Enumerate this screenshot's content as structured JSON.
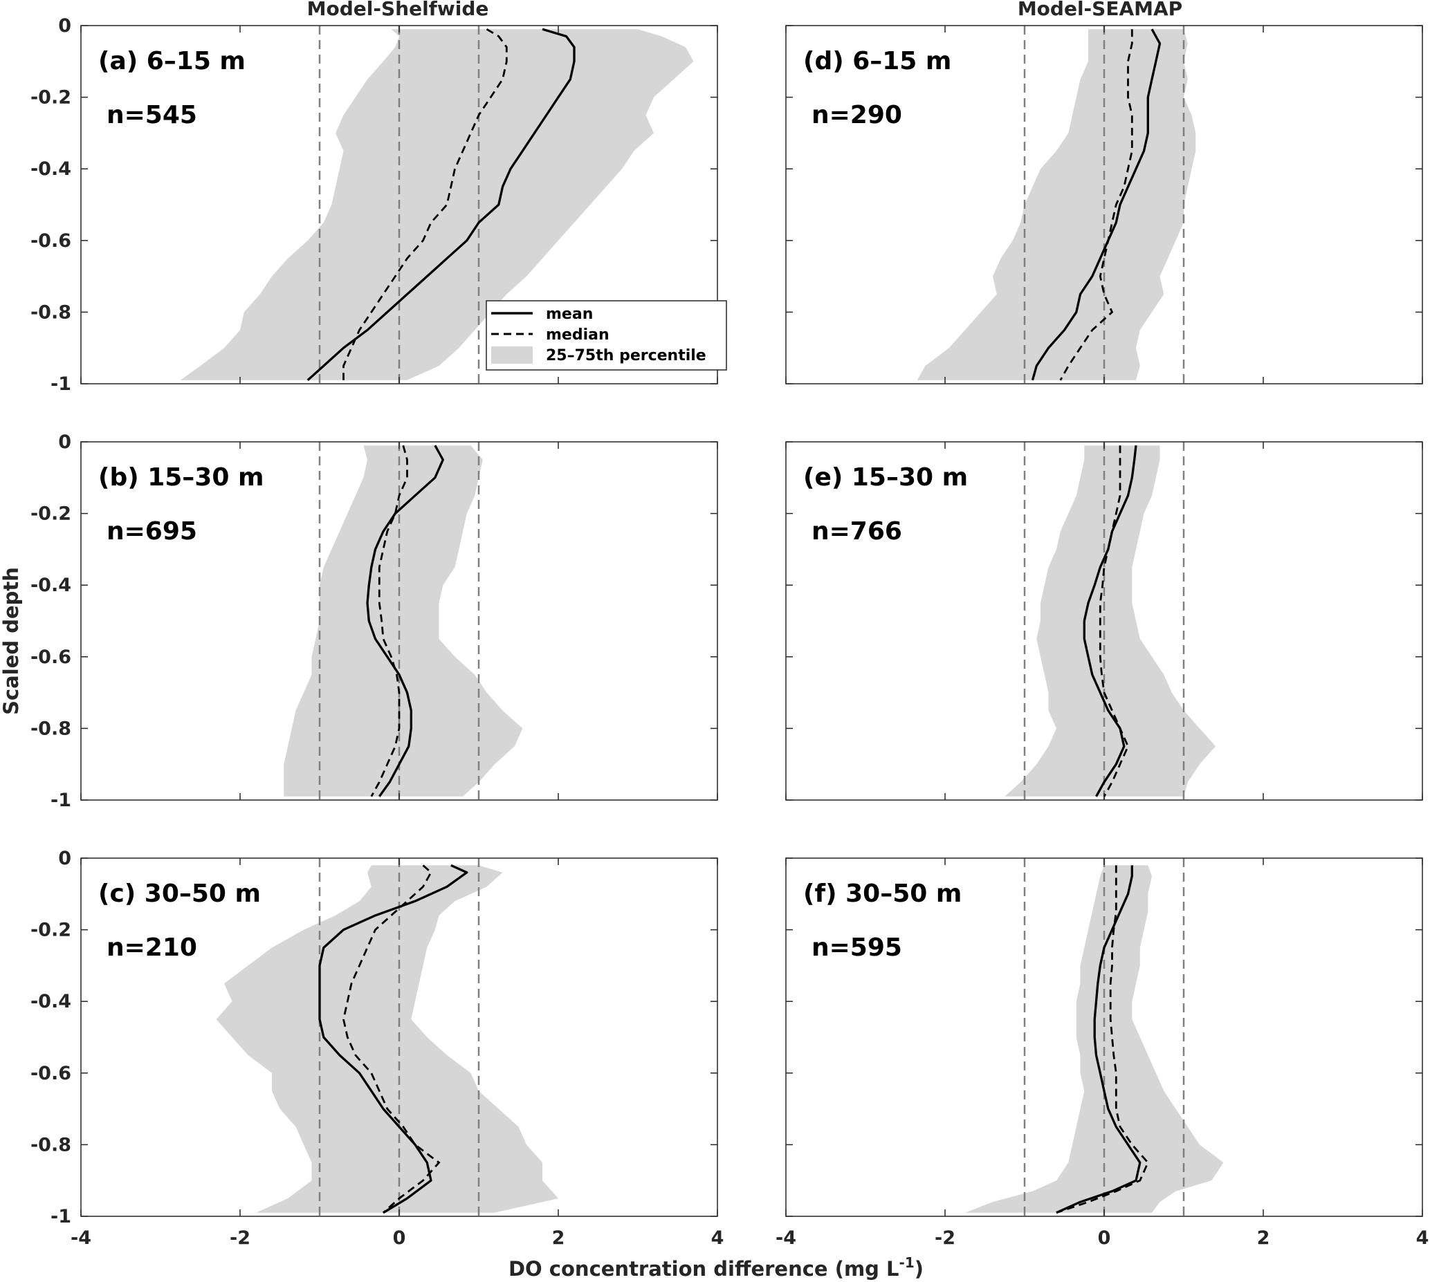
{
  "figure": {
    "column_titles": [
      "Model-Shelfwide",
      "Model-SEAMAP"
    ],
    "xlabel_main": "DO concentration difference (mg L",
    "xlabel_sup": "-1",
    "xlabel_end": ")",
    "ylabel": "Scaled depth"
  },
  "legend": {
    "mean": "mean",
    "median": "median",
    "band": "25–75th percentile"
  },
  "colors": {
    "band": "#d6d6d6",
    "mean": "#000000",
    "median": "#000000",
    "reference_lines": "#808080",
    "axes": "#262626"
  },
  "chart_data": [
    {
      "type": "line",
      "panel": "(a) 6–15 m",
      "n_label": "n=545",
      "xlim": [
        -4,
        4
      ],
      "ylim": [
        -1,
        0
      ],
      "xticks": [
        -4,
        -2,
        0,
        2,
        4
      ],
      "yticks": [
        0,
        -0.2,
        -0.4,
        -0.6,
        -0.8,
        -1
      ],
      "reference_x": [
        -1,
        0,
        1
      ],
      "depth": [
        -0.01,
        -0.03,
        -0.06,
        -0.1,
        -0.15,
        -0.2,
        -0.25,
        -0.3,
        -0.35,
        -0.4,
        -0.45,
        -0.5,
        -0.55,
        -0.6,
        -0.65,
        -0.7,
        -0.75,
        -0.8,
        -0.85,
        -0.9,
        -0.95,
        -0.99
      ],
      "mean": [
        1.8,
        2.1,
        2.2,
        2.2,
        2.15,
        2.0,
        1.85,
        1.7,
        1.55,
        1.4,
        1.3,
        1.25,
        1.0,
        0.85,
        0.6,
        0.35,
        0.1,
        -0.15,
        -0.4,
        -0.7,
        -0.95,
        -1.15
      ],
      "median": [
        1.1,
        1.25,
        1.35,
        1.35,
        1.3,
        1.15,
        1.0,
        0.9,
        0.8,
        0.7,
        0.65,
        0.6,
        0.4,
        0.3,
        0.1,
        -0.05,
        -0.2,
        -0.35,
        -0.5,
        -0.6,
        -0.7,
        -0.7
      ],
      "p25": [
        -0.1,
        0.0,
        -0.05,
        -0.2,
        -0.4,
        -0.55,
        -0.7,
        -0.8,
        -0.7,
        -0.75,
        -0.8,
        -0.85,
        -0.95,
        -1.15,
        -1.4,
        -1.6,
        -1.75,
        -1.95,
        -2.0,
        -2.2,
        -2.5,
        -2.75
      ],
      "p75": [
        3.0,
        3.3,
        3.6,
        3.7,
        3.45,
        3.2,
        3.1,
        3.2,
        2.95,
        2.8,
        2.6,
        2.4,
        2.2,
        2.0,
        1.8,
        1.6,
        1.35,
        1.15,
        0.95,
        0.75,
        0.5,
        0.1
      ]
    },
    {
      "type": "line",
      "panel": "(b) 15–30 m",
      "n_label": "n=695",
      "xlim": [
        -4,
        4
      ],
      "ylim": [
        -1,
        0
      ],
      "xticks": [
        -4,
        -2,
        0,
        2,
        4
      ],
      "yticks": [
        0,
        -0.2,
        -0.4,
        -0.6,
        -0.8,
        -1
      ],
      "reference_x": [
        -1,
        0,
        1
      ],
      "depth": [
        -0.01,
        -0.05,
        -0.1,
        -0.15,
        -0.2,
        -0.25,
        -0.3,
        -0.35,
        -0.4,
        -0.45,
        -0.5,
        -0.55,
        -0.6,
        -0.65,
        -0.7,
        -0.75,
        -0.8,
        -0.85,
        -0.9,
        -0.95,
        -0.99
      ],
      "mean": [
        0.45,
        0.55,
        0.45,
        0.2,
        -0.05,
        -0.2,
        -0.3,
        -0.35,
        -0.38,
        -0.4,
        -0.38,
        -0.3,
        -0.15,
        0.0,
        0.1,
        0.15,
        0.15,
        0.12,
        0.0,
        -0.12,
        -0.25
      ],
      "median": [
        0.05,
        0.1,
        0.1,
        0.0,
        -0.05,
        -0.15,
        -0.2,
        -0.25,
        -0.25,
        -0.25,
        -0.22,
        -0.2,
        -0.1,
        -0.03,
        0.0,
        0.0,
        0.0,
        -0.05,
        -0.15,
        -0.25,
        -0.35
      ],
      "p25": [
        -0.45,
        -0.4,
        -0.45,
        -0.55,
        -0.65,
        -0.75,
        -0.85,
        -0.95,
        -1.0,
        -1.0,
        -1.0,
        -1.05,
        -1.1,
        -1.1,
        -1.2,
        -1.3,
        -1.35,
        -1.4,
        -1.45,
        -1.45,
        -1.45
      ],
      "p75": [
        0.9,
        1.05,
        1.0,
        0.95,
        0.85,
        0.8,
        0.75,
        0.7,
        0.55,
        0.5,
        0.5,
        0.5,
        0.7,
        0.95,
        1.1,
        1.3,
        1.55,
        1.45,
        1.2,
        1.0,
        0.8
      ]
    },
    {
      "type": "line",
      "panel": "(c) 30–50 m",
      "n_label": "n=210",
      "xlim": [
        -4,
        4
      ],
      "ylim": [
        -1,
        0
      ],
      "xticks": [
        -4,
        -2,
        0,
        2,
        4
      ],
      "yticks": [
        0,
        -0.2,
        -0.4,
        -0.6,
        -0.8,
        -1
      ],
      "reference_x": [
        -1,
        0,
        1
      ],
      "depth": [
        -0.02,
        -0.04,
        -0.08,
        -0.12,
        -0.16,
        -0.2,
        -0.25,
        -0.3,
        -0.35,
        -0.4,
        -0.45,
        -0.5,
        -0.55,
        -0.6,
        -0.65,
        -0.7,
        -0.75,
        -0.8,
        -0.85,
        -0.9,
        -0.95,
        -0.99
      ],
      "mean": [
        0.65,
        0.85,
        0.6,
        0.2,
        -0.3,
        -0.7,
        -0.95,
        -1.0,
        -1.0,
        -1.0,
        -1.0,
        -0.95,
        -0.75,
        -0.5,
        -0.35,
        -0.2,
        0.0,
        0.2,
        0.35,
        0.4,
        0.1,
        -0.2
      ],
      "median": [
        0.3,
        0.4,
        0.3,
        0.1,
        -0.1,
        -0.3,
        -0.4,
        -0.5,
        -0.6,
        -0.65,
        -0.7,
        -0.65,
        -0.55,
        -0.35,
        -0.25,
        -0.15,
        0.05,
        0.2,
        0.5,
        0.3,
        0.0,
        -0.2
      ],
      "p25": [
        -0.35,
        -0.4,
        -0.35,
        -0.5,
        -0.8,
        -1.2,
        -1.6,
        -1.9,
        -2.2,
        -2.1,
        -2.3,
        -2.1,
        -1.9,
        -1.6,
        -1.6,
        -1.5,
        -1.3,
        -1.2,
        -1.1,
        -1.1,
        -1.4,
        -1.8
      ],
      "p75": [
        1.0,
        1.3,
        1.1,
        0.7,
        0.5,
        0.45,
        0.35,
        0.3,
        0.25,
        0.2,
        0.15,
        0.35,
        0.6,
        0.9,
        1.0,
        1.25,
        1.5,
        1.6,
        1.8,
        1.8,
        2.0,
        1.2
      ]
    },
    {
      "type": "line",
      "panel": "(d) 6–15 m",
      "n_label": "n=290",
      "xlim": [
        -4,
        4
      ],
      "ylim": [
        -1,
        0
      ],
      "xticks": [
        -4,
        -2,
        0,
        2,
        4
      ],
      "yticks": [
        0,
        -0.2,
        -0.4,
        -0.6,
        -0.8,
        -1
      ],
      "reference_x": [
        -1,
        0,
        1
      ],
      "depth": [
        -0.01,
        -0.05,
        -0.1,
        -0.15,
        -0.2,
        -0.25,
        -0.3,
        -0.35,
        -0.4,
        -0.45,
        -0.5,
        -0.55,
        -0.6,
        -0.65,
        -0.7,
        -0.75,
        -0.8,
        -0.85,
        -0.9,
        -0.95,
        -0.99
      ],
      "mean": [
        0.6,
        0.7,
        0.65,
        0.6,
        0.55,
        0.55,
        0.55,
        0.5,
        0.4,
        0.3,
        0.2,
        0.15,
        0.05,
        -0.05,
        -0.15,
        -0.3,
        -0.35,
        -0.5,
        -0.7,
        -0.85,
        -0.9
      ],
      "median": [
        0.35,
        0.35,
        0.3,
        0.3,
        0.3,
        0.35,
        0.35,
        0.35,
        0.3,
        0.25,
        0.15,
        0.1,
        0.05,
        0.0,
        -0.05,
        0.0,
        0.1,
        -0.15,
        -0.3,
        -0.45,
        -0.55
      ],
      "p25": [
        -0.2,
        -0.2,
        -0.2,
        -0.3,
        -0.35,
        -0.4,
        -0.45,
        -0.6,
        -0.8,
        -0.9,
        -1.0,
        -1.05,
        -1.15,
        -1.3,
        -1.4,
        -1.35,
        -1.55,
        -1.75,
        -1.95,
        -2.25,
        -2.35
      ],
      "p75": [
        1.0,
        1.05,
        1.0,
        1.05,
        1.0,
        1.1,
        1.15,
        1.15,
        1.1,
        1.05,
        1.0,
        1.0,
        0.9,
        0.8,
        0.7,
        0.75,
        0.6,
        0.45,
        0.4,
        0.45,
        0.4
      ]
    },
    {
      "type": "line",
      "panel": "(e) 15–30 m",
      "n_label": "n=766",
      "xlim": [
        -4,
        4
      ],
      "ylim": [
        -1,
        0
      ],
      "xticks": [
        -4,
        -2,
        0,
        2,
        4
      ],
      "yticks": [
        0,
        -0.2,
        -0.4,
        -0.6,
        -0.8,
        -1
      ],
      "reference_x": [
        -1,
        0,
        1
      ],
      "depth": [
        -0.01,
        -0.05,
        -0.1,
        -0.15,
        -0.2,
        -0.25,
        -0.3,
        -0.35,
        -0.4,
        -0.45,
        -0.5,
        -0.55,
        -0.6,
        -0.65,
        -0.7,
        -0.75,
        -0.8,
        -0.85,
        -0.9,
        -0.95,
        -0.99
      ],
      "mean": [
        0.4,
        0.38,
        0.35,
        0.3,
        0.2,
        0.1,
        0.05,
        -0.05,
        -0.12,
        -0.2,
        -0.25,
        -0.25,
        -0.2,
        -0.15,
        -0.05,
        0.05,
        0.2,
        0.25,
        0.15,
        0.0,
        -0.1
      ],
      "median": [
        0.2,
        0.2,
        0.2,
        0.2,
        0.15,
        0.1,
        0.05,
        0.0,
        -0.02,
        -0.05,
        -0.05,
        -0.05,
        -0.05,
        -0.03,
        0.0,
        0.1,
        0.2,
        0.3,
        0.2,
        0.1,
        0.0
      ],
      "p25": [
        -0.25,
        -0.25,
        -0.3,
        -0.35,
        -0.45,
        -0.55,
        -0.6,
        -0.7,
        -0.75,
        -0.8,
        -0.8,
        -0.85,
        -0.8,
        -0.75,
        -0.7,
        -0.7,
        -0.6,
        -0.7,
        -0.85,
        -1.05,
        -1.25
      ],
      "p75": [
        0.7,
        0.7,
        0.65,
        0.6,
        0.5,
        0.45,
        0.4,
        0.35,
        0.35,
        0.35,
        0.4,
        0.45,
        0.6,
        0.75,
        0.85,
        1.0,
        1.2,
        1.4,
        1.2,
        1.05,
        1.0
      ]
    },
    {
      "type": "line",
      "panel": "(f) 30–50 m",
      "n_label": "n=595",
      "xlim": [
        -4,
        4
      ],
      "ylim": [
        -1,
        0
      ],
      "xticks": [
        -4,
        -2,
        0,
        2,
        4
      ],
      "yticks": [
        0,
        -0.2,
        -0.4,
        -0.6,
        -0.8,
        -1
      ],
      "reference_x": [
        -1,
        0,
        1
      ],
      "depth": [
        -0.02,
        -0.05,
        -0.1,
        -0.15,
        -0.2,
        -0.25,
        -0.3,
        -0.35,
        -0.4,
        -0.45,
        -0.5,
        -0.55,
        -0.6,
        -0.65,
        -0.7,
        -0.75,
        -0.8,
        -0.85,
        -0.9,
        -0.93,
        -0.96,
        -0.99
      ],
      "mean": [
        0.35,
        0.35,
        0.3,
        0.2,
        0.1,
        0.0,
        -0.05,
        -0.08,
        -0.1,
        -0.12,
        -0.12,
        -0.1,
        -0.05,
        0.0,
        0.05,
        0.15,
        0.3,
        0.45,
        0.4,
        0.1,
        -0.3,
        -0.6
      ],
      "median": [
        0.15,
        0.15,
        0.15,
        0.15,
        0.12,
        0.1,
        0.1,
        0.08,
        0.08,
        0.08,
        0.1,
        0.12,
        0.15,
        0.15,
        0.15,
        0.2,
        0.35,
        0.55,
        0.45,
        0.15,
        -0.2,
        -0.6
      ],
      "p25": [
        0.0,
        -0.05,
        -0.1,
        -0.15,
        -0.2,
        -0.25,
        -0.3,
        -0.3,
        -0.35,
        -0.35,
        -0.35,
        -0.3,
        -0.3,
        -0.25,
        -0.3,
        -0.35,
        -0.4,
        -0.45,
        -0.6,
        -0.9,
        -1.4,
        -1.75
      ],
      "p75": [
        0.55,
        0.6,
        0.55,
        0.55,
        0.5,
        0.45,
        0.45,
        0.4,
        0.35,
        0.35,
        0.45,
        0.55,
        0.65,
        0.75,
        0.9,
        1.05,
        1.2,
        1.5,
        1.35,
        0.9,
        0.7,
        0.6
      ]
    }
  ]
}
